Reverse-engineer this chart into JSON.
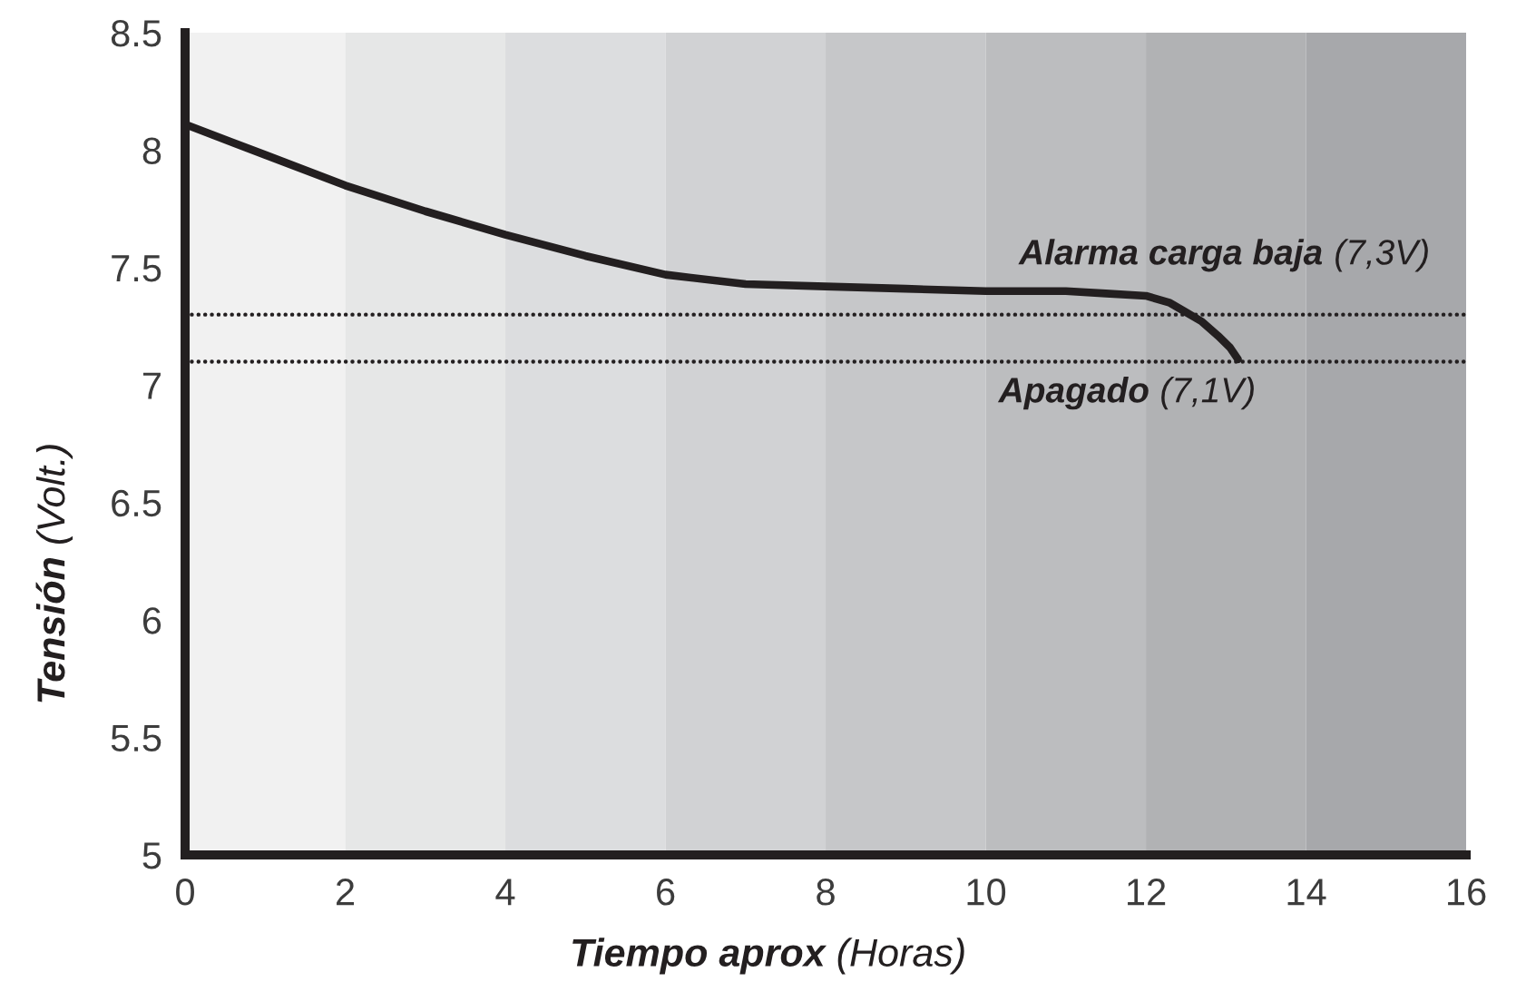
{
  "chart_data": {
    "type": "line",
    "xlabel": "Tiempo aprox (Horas)",
    "ylabel": "Tensión (Volt.)",
    "x": [
      0,
      1,
      2,
      3,
      4,
      5,
      6,
      7,
      8,
      9,
      10,
      11,
      11.5,
      12,
      12.3,
      12.5,
      12.7,
      12.9,
      13.05,
      13.15
    ],
    "series": [
      {
        "color": "#231f20",
        "values": [
          8.11,
          7.98,
          7.85,
          7.74,
          7.64,
          7.55,
          7.47,
          7.43,
          7.42,
          7.41,
          7.4,
          7.4,
          7.39,
          7.38,
          7.35,
          7.31,
          7.27,
          7.21,
          7.16,
          7.11
        ]
      }
    ],
    "xlim": [
      0,
      16
    ],
    "ylim": [
      5,
      8.5
    ],
    "xticks": [
      0,
      2,
      4,
      6,
      8,
      10,
      12,
      14,
      16
    ],
    "yticks": [
      5,
      5.5,
      6,
      6.5,
      7,
      7.5,
      8,
      8.5
    ],
    "ref_lines": [
      {
        "axis": "y",
        "value": 7.3,
        "label": "Alarma carga baja (7,3V)",
        "color": "#231f20",
        "line_style": "dotted"
      },
      {
        "axis": "y",
        "value": 7.1,
        "label": "Apagado (7,1V)",
        "color": "#231f20",
        "line_style": "dotted"
      }
    ],
    "bands": [
      {
        "axis": "x",
        "from": 0,
        "to": 2,
        "color": "#f1f1f1"
      },
      {
        "axis": "x",
        "from": 2,
        "to": 4,
        "color": "#e6e7e7"
      },
      {
        "axis": "x",
        "from": 4,
        "to": 6,
        "color": "#dcdddf"
      },
      {
        "axis": "x",
        "from": 6,
        "to": 8,
        "color": "#d1d2d4"
      },
      {
        "axis": "x",
        "from": 8,
        "to": 10,
        "color": "#c6c7c9"
      },
      {
        "axis": "x",
        "from": 10,
        "to": 12,
        "color": "#bcbdbf"
      },
      {
        "axis": "x",
        "from": 12,
        "to": 14,
        "color": "#b1b2b4"
      },
      {
        "axis": "x",
        "from": 14,
        "to": 16,
        "color": "#a7a8ab"
      }
    ]
  }
}
